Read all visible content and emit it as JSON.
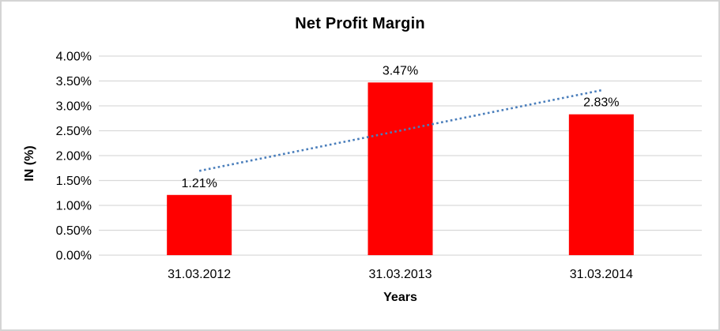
{
  "page": {
    "background": "#ffffff",
    "frame_border_color": "#d4d4d4"
  },
  "chart_data": {
    "type": "bar",
    "title": "Net Profit Margin",
    "xlabel": "Years",
    "ylabel": "IN (%)",
    "categories": [
      "31.03.2012",
      "31.03.2013",
      "31.03.2014"
    ],
    "values": [
      1.21,
      3.47,
      2.83
    ],
    "data_labels": [
      "1.21%",
      "3.47%",
      "2.83%"
    ],
    "ylim": [
      0,
      4.0
    ],
    "ytick_step": 0.5,
    "ytick_labels": [
      "0.00%",
      "0.50%",
      "1.00%",
      "1.50%",
      "2.00%",
      "2.50%",
      "3.00%",
      "3.50%",
      "4.00%"
    ],
    "grid": true,
    "legend": "none",
    "bar_color": "#ff0000",
    "gridline_color": "#d9d9d9",
    "text_color": "#000000",
    "trendline": {
      "fit": "linear",
      "style": "dotted",
      "color": "#4a7ebb"
    }
  }
}
